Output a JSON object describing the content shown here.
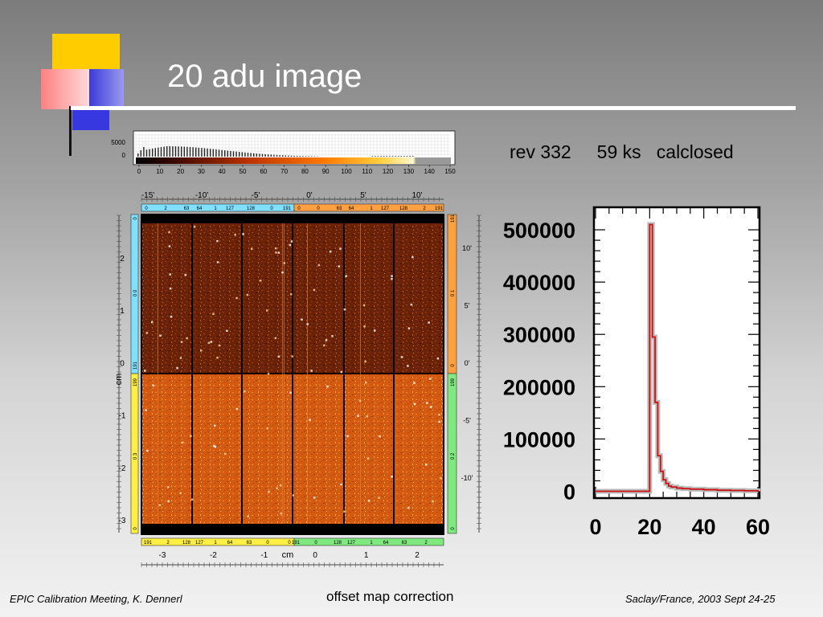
{
  "slide": {
    "title": "20 adu image",
    "observation": "rev 332     59 ks   calclosed",
    "footer_left": "EPIC Calibration Meeting, K. Dennerl",
    "footer_center": "offset map correction",
    "footer_right": "Saclay/France, 2003 Sept 24-25"
  },
  "colors": {
    "accent_yellow": "#ffcc00",
    "accent_blue": "#3838e0",
    "accent_pink": "#ff8080",
    "curve_red": "#cc1111",
    "quadrant_cyan": "#7fe0ff",
    "quadrant_orange": "#ffa040",
    "quadrant_green": "#7fe87f",
    "quadrant_yellow": "#ffee44"
  },
  "histogram": {
    "y_ticks": [
      "5000",
      "0"
    ],
    "x_ticks": [
      "0",
      "10",
      "20",
      "30",
      "40",
      "50",
      "60",
      "70",
      "80",
      "90",
      "100",
      "110",
      "120",
      "130",
      "140",
      "150"
    ]
  },
  "image_panel": {
    "top_arc_ticks": [
      "-15'",
      "-10'",
      "-5'",
      "0'",
      "5'",
      "10'"
    ],
    "top_strip_left": [
      "0",
      "2",
      "63",
      "64",
      "1",
      "127",
      "128",
      "0",
      "191"
    ],
    "top_strip_right": [
      "0",
      "0",
      "63",
      "64",
      "1",
      "127",
      "128",
      "2",
      "191"
    ],
    "left_cm_ticks": [
      "2",
      "1",
      "0",
      "-1",
      "-2",
      "-3"
    ],
    "left_cm_label": "cm",
    "left_strip_top": [
      "0",
      "0 0",
      "191"
    ],
    "left_strip_bottom": [
      "199",
      "0 3",
      "0"
    ],
    "right_arc_ticks": [
      "10'",
      "5'",
      "0'",
      "-5'",
      "-10'"
    ],
    "right_strip_top": [
      "191",
      "0 1",
      "0"
    ],
    "right_strip_bottom": [
      "199",
      "0 2",
      "0"
    ],
    "bottom_strip_left": [
      "191",
      "2",
      "128",
      "127",
      "1",
      "64",
      "63",
      "0"
    ],
    "bottom_strip_right": [
      "0",
      "191",
      "0",
      "128",
      "127",
      "1",
      "64",
      "63",
      "2"
    ],
    "bottom_cm_ticks": [
      "-3",
      "-2",
      "-1",
      "0",
      "1",
      "2"
    ],
    "bottom_cm_label": "cm"
  },
  "chart_data": {
    "type": "line",
    "title": "",
    "xlabel": "",
    "ylabel": "",
    "x_ticks": [
      "0",
      "20",
      "40",
      "60"
    ],
    "y_ticks": [
      "500000",
      "400000",
      "300000",
      "200000",
      "100000",
      "0"
    ],
    "xlim": [
      0,
      60
    ],
    "ylim": [
      -10000,
      540000
    ],
    "series": [
      {
        "x": [
          0,
          19.5,
          20,
          21,
          22,
          23,
          24,
          25,
          26,
          27,
          28,
          30,
          32,
          35,
          40,
          45,
          50,
          55,
          60
        ],
        "y": [
          0,
          0,
          510000,
          295000,
          170000,
          68000,
          38000,
          22000,
          15000,
          10000,
          8000,
          6000,
          5000,
          4000,
          3000,
          2000,
          1500,
          1000,
          0
        ]
      }
    ]
  }
}
